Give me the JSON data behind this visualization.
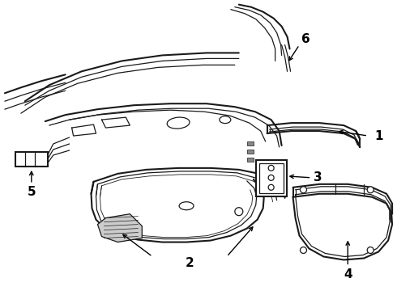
{
  "bg_color": "#ffffff",
  "line_color": "#1a1a1a",
  "label_color": "#000000",
  "figsize": [
    4.9,
    3.6
  ],
  "dpi": 100,
  "label_fontsize": 10,
  "label_fontweight": "bold"
}
